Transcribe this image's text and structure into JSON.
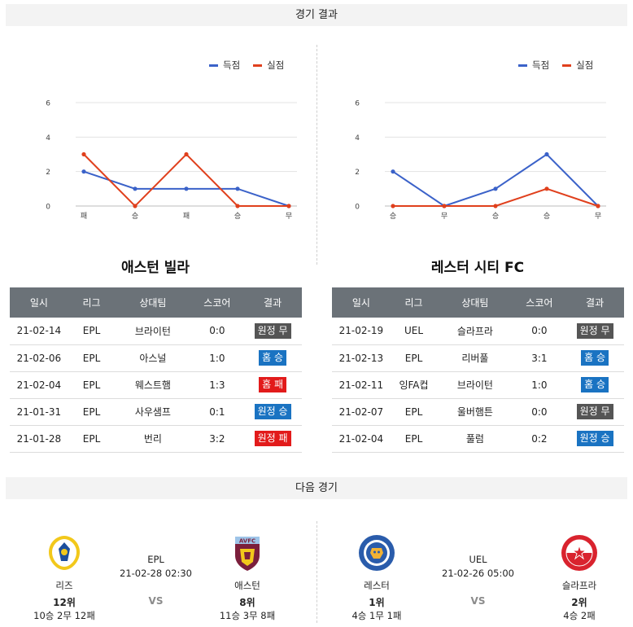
{
  "sections": {
    "results_title": "경기 결과",
    "next_title": "다음 경기"
  },
  "legend": {
    "scored": "득점",
    "conceded": "실점",
    "scored_color": "#3b62c9",
    "conceded_color": "#e0401d"
  },
  "chart_data": [
    {
      "type": "line",
      "categories": [
        "패",
        "승",
        "패",
        "승",
        "무"
      ],
      "series": [
        {
          "name": "득점",
          "values": [
            2,
            1,
            1,
            1,
            0
          ]
        },
        {
          "name": "실점",
          "values": [
            3,
            0,
            3,
            0,
            0
          ]
        }
      ],
      "yticks": [
        "0",
        "2",
        "4",
        "6"
      ],
      "ylim": [
        0,
        6
      ],
      "grid": true,
      "legend_position": "top-right"
    },
    {
      "type": "line",
      "categories": [
        "승",
        "무",
        "승",
        "승",
        "무"
      ],
      "series": [
        {
          "name": "득점",
          "values": [
            2,
            0,
            1,
            3,
            0
          ]
        },
        {
          "name": "실점",
          "values": [
            0,
            0,
            0,
            1,
            0
          ]
        }
      ],
      "yticks": [
        "0",
        "2",
        "4",
        "6"
      ],
      "ylim": [
        0,
        6
      ],
      "grid": true,
      "legend_position": "top-right"
    }
  ],
  "tables": {
    "headers": [
      "일시",
      "리그",
      "상대팀",
      "스코어",
      "결과"
    ],
    "left": {
      "team": "애스턴 빌라",
      "rows": [
        {
          "date": "21-02-14",
          "league": "EPL",
          "opponent": "브라이턴",
          "score": "0:0",
          "result": "원정 무",
          "kind": "draw"
        },
        {
          "date": "21-02-06",
          "league": "EPL",
          "opponent": "아스널",
          "score": "1:0",
          "result": "홈 승",
          "kind": "win"
        },
        {
          "date": "21-02-04",
          "league": "EPL",
          "opponent": "웨스트햄",
          "score": "1:3",
          "result": "홈 패",
          "kind": "lose"
        },
        {
          "date": "21-01-31",
          "league": "EPL",
          "opponent": "사우샘프",
          "score": "0:1",
          "result": "원정 승",
          "kind": "win"
        },
        {
          "date": "21-01-28",
          "league": "EPL",
          "opponent": "번리",
          "score": "3:2",
          "result": "원정 패",
          "kind": "lose"
        }
      ]
    },
    "right": {
      "team": "레스터 시티 FC",
      "rows": [
        {
          "date": "21-02-19",
          "league": "UEL",
          "opponent": "슬라프라",
          "score": "0:0",
          "result": "원정 무",
          "kind": "draw"
        },
        {
          "date": "21-02-13",
          "league": "EPL",
          "opponent": "리버풀",
          "score": "3:1",
          "result": "홈 승",
          "kind": "win"
        },
        {
          "date": "21-02-11",
          "league": "잉FA컵",
          "opponent": "브라이턴",
          "score": "1:0",
          "result": "홈 승",
          "kind": "win"
        },
        {
          "date": "21-02-07",
          "league": "EPL",
          "opponent": "울버햄튼",
          "score": "0:0",
          "result": "원정 무",
          "kind": "draw"
        },
        {
          "date": "21-02-04",
          "league": "EPL",
          "opponent": "풀럼",
          "score": "0:2",
          "result": "원정 승",
          "kind": "win"
        }
      ]
    }
  },
  "next": {
    "left": {
      "league": "EPL",
      "datetime": "21-02-28 02:30",
      "vs": "VS",
      "home": {
        "name": "리즈",
        "rank": "12위",
        "record": "10승 2무 12패",
        "logo": "leeds-crest-icon"
      },
      "away": {
        "name": "애스턴",
        "rank": "8위",
        "record": "11승 3무 8패",
        "logo": "aston-villa-crest-icon"
      }
    },
    "right": {
      "league": "UEL",
      "datetime": "21-02-26 05:00",
      "vs": "VS",
      "home": {
        "name": "레스터",
        "rank": "1위",
        "record": "4승 1무 1패",
        "logo": "leicester-crest-icon"
      },
      "away": {
        "name": "슬라프라",
        "rank": "2위",
        "record": "4승 2패",
        "logo": "slavia-praha-crest-icon"
      }
    }
  }
}
